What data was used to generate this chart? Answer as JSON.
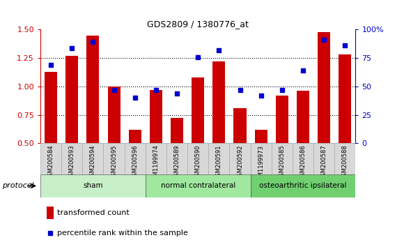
{
  "title": "GDS2809 / 1380776_at",
  "samples": [
    "GSM200584",
    "GSM200593",
    "GSM200594",
    "GSM200595",
    "GSM200596",
    "GSM1199974",
    "GSM200589",
    "GSM200590",
    "GSM200591",
    "GSM200592",
    "GSM1199973",
    "GSM200585",
    "GSM200586",
    "GSM200587",
    "GSM200588"
  ],
  "red_values": [
    1.13,
    1.27,
    1.45,
    1.0,
    0.62,
    0.97,
    0.72,
    1.08,
    1.22,
    0.81,
    0.62,
    0.92,
    0.96,
    1.48,
    1.28
  ],
  "blue_percentiles": [
    69,
    84,
    89,
    47,
    40,
    47,
    44,
    76,
    82,
    47,
    42,
    47,
    64,
    91,
    86
  ],
  "groups": [
    {
      "label": "sham",
      "start": 0,
      "end": 5,
      "color": "#c8f0c8"
    },
    {
      "label": "normal contralateral",
      "start": 5,
      "end": 10,
      "color": "#a0e8a0"
    },
    {
      "label": "osteoarthritic ipsilateral",
      "start": 10,
      "end": 15,
      "color": "#70d070"
    }
  ],
  "ylim_left": [
    0.5,
    1.5
  ],
  "ylim_right": [
    0,
    100
  ],
  "yticks_left": [
    0.5,
    0.75,
    1.0,
    1.25,
    1.5
  ],
  "yticks_right": [
    0,
    25,
    50,
    75,
    100
  ],
  "ytick_labels_right": [
    "0",
    "25",
    "50",
    "75",
    "100%"
  ],
  "bar_color": "#cc0000",
  "dot_color": "#0000cc",
  "bar_width": 0.6,
  "bg_color": "#ffffff",
  "label_color_left": "#cc0000",
  "label_color_right": "#0000cc",
  "protocol_label": "protocol",
  "legend_items": [
    "transformed count",
    "percentile rank within the sample"
  ],
  "legend_colors": [
    "#cc0000",
    "#0000cc"
  ],
  "xtick_bg": "#d8d8d8",
  "xtick_border": "#aaaaaa"
}
